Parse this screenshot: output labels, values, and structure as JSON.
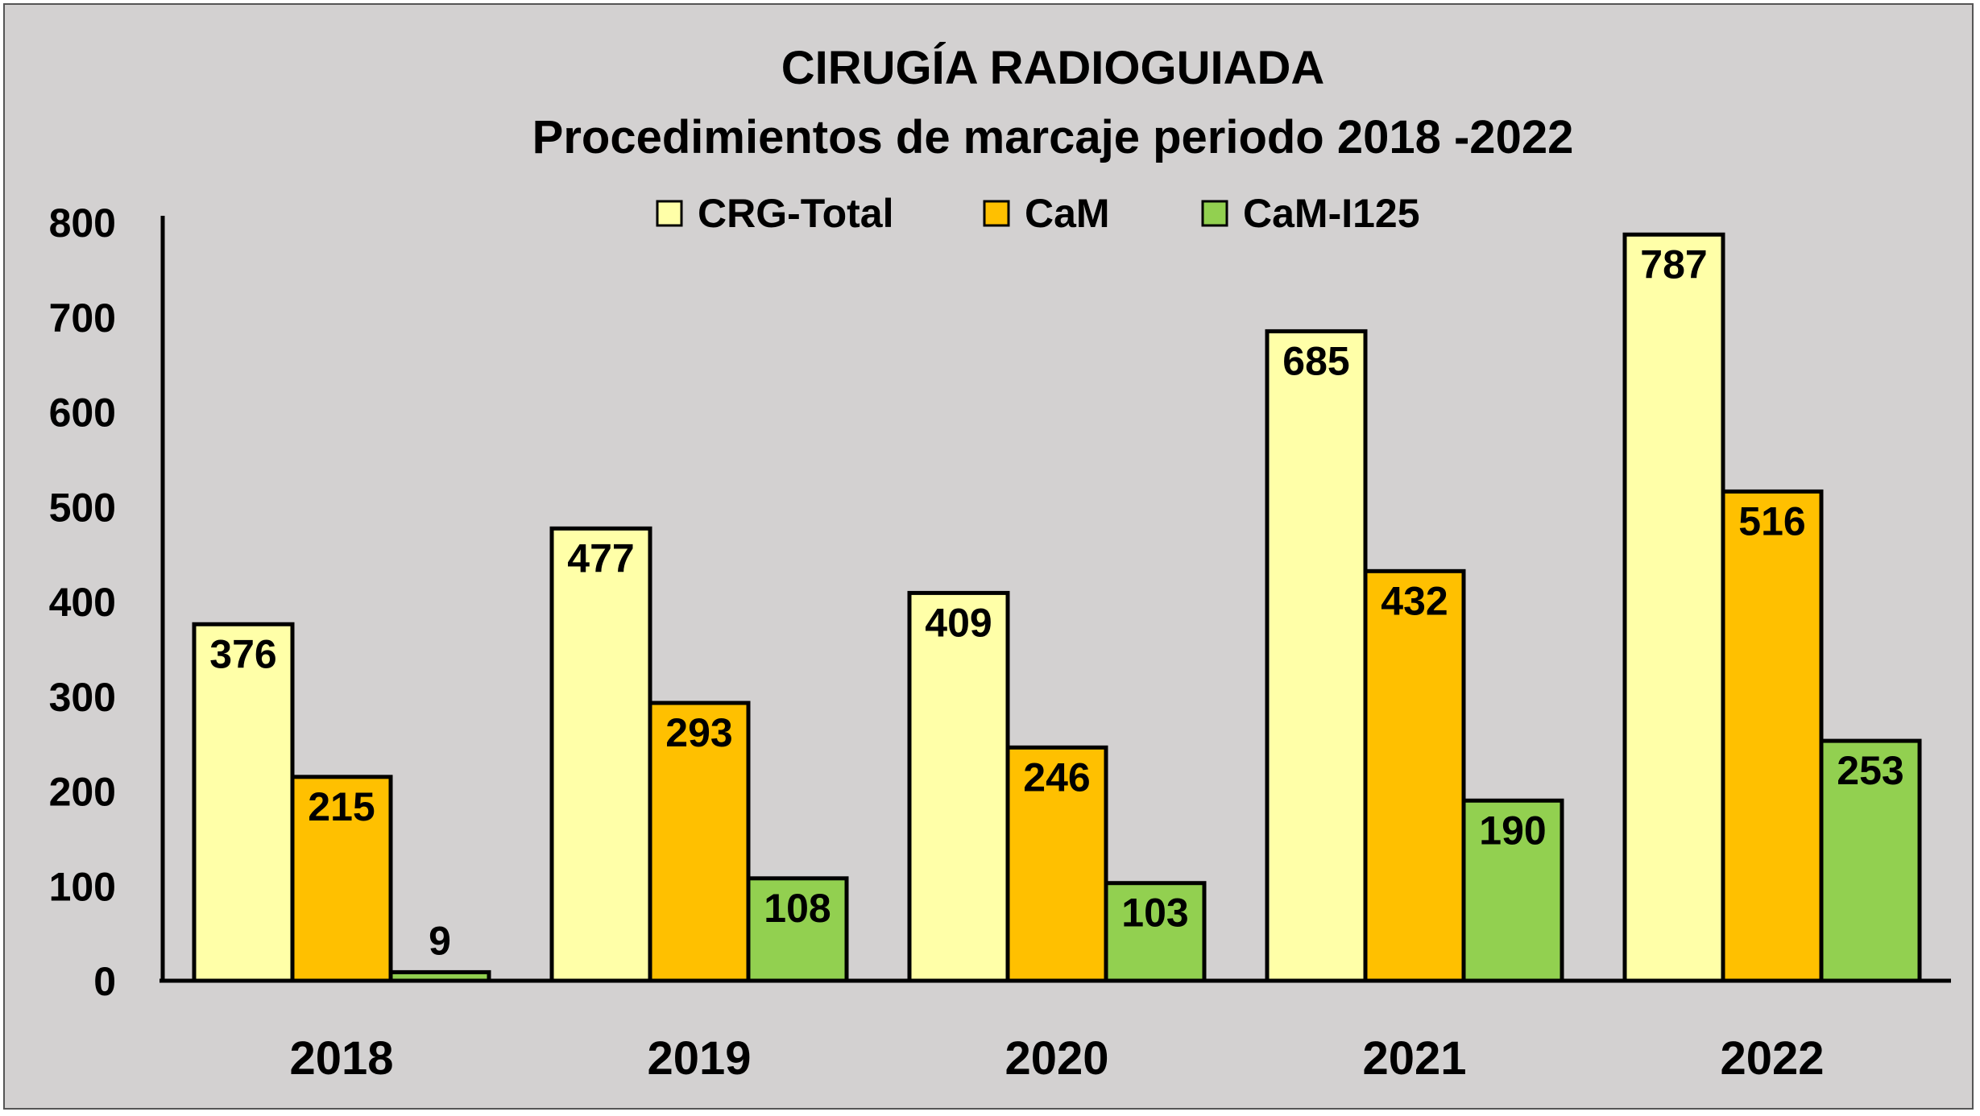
{
  "chart_data": {
    "type": "bar",
    "title": "CIRUGÍA RADIOGUIADA",
    "subtitle": "Procedimientos de marcaje periodo 2018 -2022",
    "categories": [
      "2018",
      "2019",
      "2020",
      "2021",
      "2022"
    ],
    "series": [
      {
        "name": "CRG-Total",
        "color": "#ffffa8",
        "values": [
          376,
          477,
          409,
          685,
          787
        ]
      },
      {
        "name": "CaM",
        "color": "#ffc000",
        "values": [
          215,
          293,
          246,
          432,
          516
        ]
      },
      {
        "name": "CaM-I125",
        "color": "#92d050",
        "values": [
          9,
          108,
          103,
          190,
          253
        ]
      }
    ],
    "ylim": [
      0,
      800
    ],
    "yticks": [
      0,
      100,
      200,
      300,
      400,
      500,
      600,
      700,
      800
    ],
    "xlabel": "",
    "ylabel": "",
    "grid": false,
    "legend_position": "top",
    "background_color": "#d3d1d1"
  }
}
